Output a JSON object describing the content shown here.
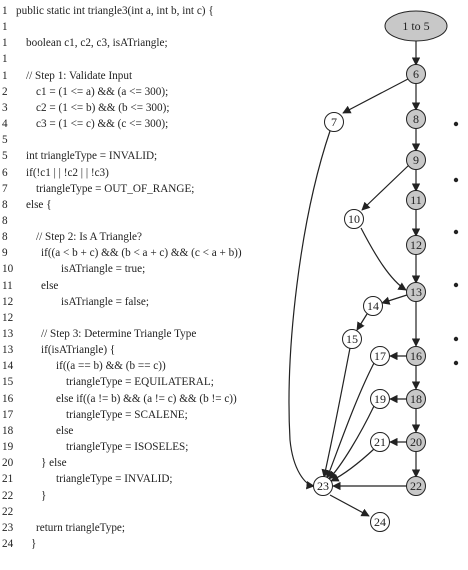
{
  "code_lines": [
    {
      "n": "1",
      "text": "public static int triangle3(int a, int b, int c) {",
      "indent": 0
    },
    {
      "n": "1",
      "text": "",
      "indent": 0
    },
    {
      "n": "1",
      "text": "boolean c1, c2, c3, isATriangle;",
      "indent": 2
    },
    {
      "n": "1",
      "text": "",
      "indent": 0
    },
    {
      "n": "1",
      "text": "// Step 1: Validate Input",
      "indent": 2
    },
    {
      "n": "2",
      "text": "c1 = (1 <= a) && (a <= 300);",
      "indent": 4
    },
    {
      "n": "3",
      "text": "c2 = (1 <= b) && (b <= 300);",
      "indent": 4
    },
    {
      "n": "4",
      "text": "c3 = (1 <= c) && (c <= 300);",
      "indent": 4
    },
    {
      "n": "5",
      "text": "",
      "indent": 0
    },
    {
      "n": "5",
      "text": "int triangleType = INVALID;",
      "indent": 2
    },
    {
      "n": "6",
      "text": "if(!c1 | | !c2 | | !c3)",
      "indent": 2
    },
    {
      "n": "7",
      "text": "triangleType = OUT_OF_RANGE;",
      "indent": 4
    },
    {
      "n": "8",
      "text": "else {",
      "indent": 2
    },
    {
      "n": "8",
      "text": "",
      "indent": 0
    },
    {
      "n": "8",
      "text": "// Step 2: Is A Triangle?",
      "indent": 4
    },
    {
      "n": "9",
      "text": "if((a < b + c) && (b < a + c) && (c < a + b))",
      "indent": 5
    },
    {
      "n": "10",
      "text": "isATriangle = true;",
      "indent": 9
    },
    {
      "n": "11",
      "text": "else",
      "indent": 5
    },
    {
      "n": "12",
      "text": "isATriangle = false;",
      "indent": 9
    },
    {
      "n": "12",
      "text": "",
      "indent": 0
    },
    {
      "n": "13",
      "text": "// Step 3: Determine Triangle Type",
      "indent": 5
    },
    {
      "n": "13",
      "text": "if(isATriangle) {",
      "indent": 5
    },
    {
      "n": "14",
      "text": "if((a == b) && (b == c))",
      "indent": 8
    },
    {
      "n": "15",
      "text": "triangleType = EQUILATERAL;",
      "indent": 10
    },
    {
      "n": "16",
      "text": "else if((a != b) && (a != c) && (b != c))",
      "indent": 8
    },
    {
      "n": "17",
      "text": "triangleType = SCALENE;",
      "indent": 10
    },
    {
      "n": "18",
      "text": "else",
      "indent": 8
    },
    {
      "n": "19",
      "text": "triangleType = ISOSELES;",
      "indent": 10
    },
    {
      "n": "20",
      "text": "} else",
      "indent": 5
    },
    {
      "n": "21",
      "text": "triangleType = INVALID;",
      "indent": 8
    },
    {
      "n": "22",
      "text": "}",
      "indent": 5
    },
    {
      "n": "22",
      "text": "",
      "indent": 0
    },
    {
      "n": "23",
      "text": "return triangleType;",
      "indent": 4
    },
    {
      "n": "24",
      "text": "}",
      "indent": 3
    }
  ],
  "graph": {
    "nodes": [
      {
        "id": "n1to5",
        "label": "1 to 5",
        "shaded": true,
        "shape": "ellipse"
      },
      {
        "id": "n6",
        "label": "6",
        "shaded": true
      },
      {
        "id": "n7",
        "label": "7",
        "shaded": false
      },
      {
        "id": "n8",
        "label": "8",
        "shaded": true
      },
      {
        "id": "n9",
        "label": "9",
        "shaded": true
      },
      {
        "id": "n10",
        "label": "10",
        "shaded": false
      },
      {
        "id": "n11",
        "label": "11",
        "shaded": true
      },
      {
        "id": "n12",
        "label": "12",
        "shaded": true
      },
      {
        "id": "n13",
        "label": "13",
        "shaded": true
      },
      {
        "id": "n14",
        "label": "14",
        "shaded": false
      },
      {
        "id": "n15",
        "label": "15",
        "shaded": false
      },
      {
        "id": "n16",
        "label": "16",
        "shaded": true
      },
      {
        "id": "n17",
        "label": "17",
        "shaded": false
      },
      {
        "id": "n18",
        "label": "18",
        "shaded": true
      },
      {
        "id": "n19",
        "label": "19",
        "shaded": false
      },
      {
        "id": "n20",
        "label": "20",
        "shaded": true
      },
      {
        "id": "n21",
        "label": "21",
        "shaded": false
      },
      {
        "id": "n22",
        "label": "22",
        "shaded": true
      },
      {
        "id": "n23",
        "label": "23",
        "shaded": false
      },
      {
        "id": "n24",
        "label": "24",
        "shaded": false
      }
    ],
    "shaded_fill": "#c8c8c8",
    "plain_fill": "#ffffff"
  }
}
